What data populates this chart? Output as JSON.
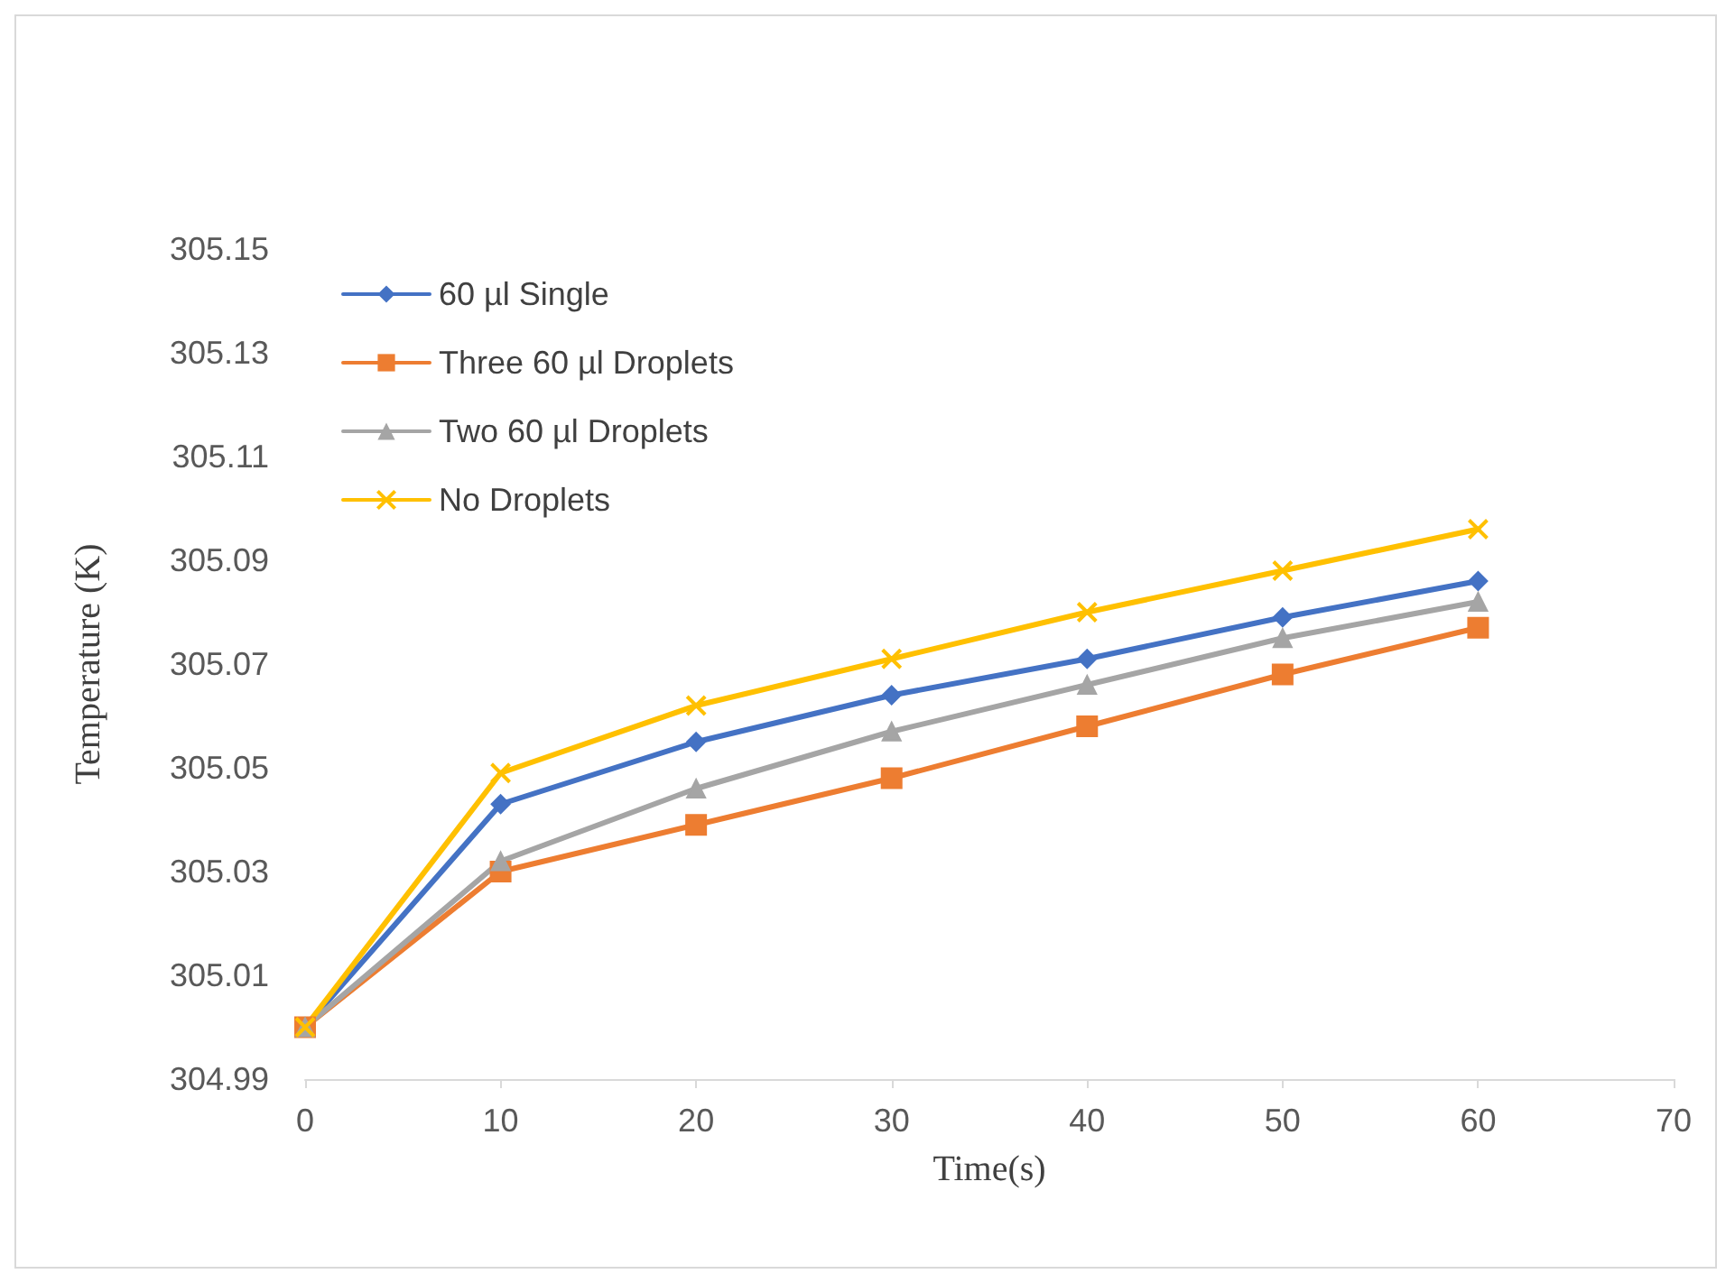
{
  "chart_data": {
    "type": "line",
    "xlabel": "Time(s)",
    "ylabel": "Temperature (K)",
    "x": [
      0,
      10,
      20,
      30,
      40,
      50,
      60
    ],
    "series": [
      {
        "name": "60 µl Single",
        "color": "#4472c4",
        "marker": "diamond",
        "values": [
          305.0,
          305.043,
          305.055,
          305.064,
          305.071,
          305.079,
          305.086
        ]
      },
      {
        "name": "Three 60 µl Droplets",
        "color": "#ed7d31",
        "marker": "square",
        "values": [
          305.0,
          305.03,
          305.039,
          305.048,
          305.058,
          305.068,
          305.077
        ]
      },
      {
        "name": "Two 60 µl Droplets",
        "color": "#a5a5a5",
        "marker": "triangle",
        "values": [
          305.0,
          305.032,
          305.046,
          305.057,
          305.066,
          305.075,
          305.082
        ]
      },
      {
        "name": "No Droplets",
        "color": "#ffc000",
        "marker": "cross",
        "values": [
          305.0,
          305.049,
          305.062,
          305.071,
          305.08,
          305.088,
          305.096
        ]
      }
    ],
    "xlim": [
      0,
      70
    ],
    "xticks": [
      0,
      10,
      20,
      30,
      40,
      50,
      60,
      70
    ],
    "ylim": [
      304.99,
      305.15
    ],
    "yticks": [
      304.99,
      305.01,
      305.03,
      305.05,
      305.07,
      305.09,
      305.11,
      305.13,
      305.15
    ],
    "grid": false,
    "legend": "top left",
    "line_style": "solid"
  }
}
